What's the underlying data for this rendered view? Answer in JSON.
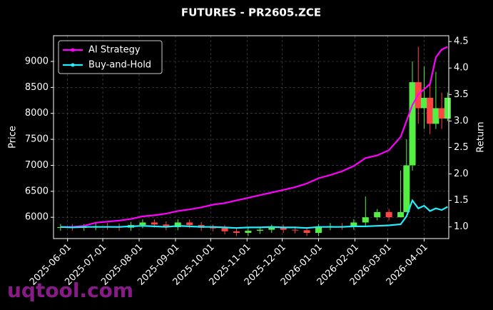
{
  "chart_data": {
    "type": "candlestick",
    "title": "FUTURES - PR2605.ZCE",
    "y_label": "Price",
    "y2_label": "Return",
    "watermark": "uqtool.com",
    "x": [
      "2025-05-26",
      "2025-06-05",
      "2025-06-15",
      "2025-06-25",
      "2025-07-05",
      "2025-07-15",
      "2025-07-25",
      "2025-08-04",
      "2025-08-14",
      "2025-08-24",
      "2025-09-03",
      "2025-09-13",
      "2025-09-23",
      "2025-10-03",
      "2025-10-13",
      "2025-10-23",
      "2025-11-02",
      "2025-11-12",
      "2025-11-22",
      "2025-12-02",
      "2025-12-12",
      "2025-12-22",
      "2026-01-01",
      "2026-01-11",
      "2026-01-21",
      "2026-01-31",
      "2026-02-10",
      "2026-02-20",
      "2026-03-02",
      "2026-03-12",
      "2026-03-17",
      "2026-03-22",
      "2026-03-27",
      "2026-04-01",
      "2026-04-06",
      "2026-04-11",
      "2026-04-16",
      "2026-04-21"
    ],
    "open": [
      5800,
      5810,
      5800,
      5810,
      5830,
      5820,
      5800,
      5850,
      5900,
      5860,
      5810,
      5900,
      5850,
      5800,
      5790,
      5730,
      5700,
      5740,
      5760,
      5800,
      5760,
      5750,
      5700,
      5810,
      5830,
      5820,
      5900,
      6000,
      6100,
      6000,
      6100,
      7000,
      8600,
      8100,
      8300,
      7800,
      8100,
      7900
    ],
    "high": [
      5870,
      5870,
      5870,
      5890,
      5890,
      5880,
      5910,
      5960,
      5960,
      5920,
      5960,
      5960,
      5910,
      5860,
      5850,
      5790,
      5800,
      5820,
      5860,
      5860,
      5820,
      5810,
      5870,
      5890,
      5890,
      5960,
      6400,
      6160,
      6160,
      6900,
      7500,
      9000,
      9280,
      8900,
      8600,
      8800,
      8400,
      8400
    ],
    "low": [
      5740,
      5740,
      5740,
      5750,
      5760,
      5740,
      5740,
      5790,
      5800,
      5750,
      5750,
      5790,
      5740,
      5730,
      5670,
      5640,
      5640,
      5680,
      5700,
      5700,
      5690,
      5640,
      5640,
      5750,
      5760,
      5760,
      5840,
      5940,
      5940,
      6000,
      6100,
      6900,
      7800,
      7700,
      7600,
      7700,
      7700,
      7850
    ],
    "close": [
      5810,
      5800,
      5810,
      5830,
      5820,
      5800,
      5850,
      5900,
      5860,
      5810,
      5900,
      5850,
      5800,
      5790,
      5730,
      5700,
      5740,
      5760,
      5800,
      5760,
      5750,
      5700,
      5810,
      5830,
      5820,
      5900,
      6000,
      6100,
      6000,
      6100,
      7000,
      8600,
      8100,
      8300,
      7800,
      8100,
      7900,
      8300
    ],
    "up_color": "#55ee44",
    "down_color": "#ff4444",
    "series": [
      {
        "name": "AI Strategy",
        "color": "#ff00ff",
        "axis": "y2",
        "values": [
          1.0,
          1.0,
          1.02,
          1.08,
          1.1,
          1.12,
          1.15,
          1.2,
          1.22,
          1.25,
          1.3,
          1.33,
          1.37,
          1.42,
          1.45,
          1.5,
          1.55,
          1.6,
          1.65,
          1.7,
          1.75,
          1.82,
          1.92,
          1.98,
          2.05,
          2.15,
          2.3,
          2.35,
          2.45,
          2.7,
          3.0,
          3.3,
          3.5,
          3.6,
          3.7,
          4.2,
          4.35,
          4.4
        ]
      },
      {
        "name": "Buy-and-Hold",
        "color": "#22eeff",
        "axis": "y2",
        "values": [
          1.0,
          0.99,
          1.0,
          1.0,
          1.0,
          1.0,
          1.01,
          1.02,
          1.01,
          1.0,
          1.02,
          1.01,
          1.0,
          1.0,
          0.99,
          0.98,
          0.99,
          0.99,
          1.0,
          0.99,
          0.99,
          0.98,
          1.0,
          1.0,
          1.0,
          1.01,
          1.01,
          1.02,
          1.03,
          1.05,
          1.2,
          1.5,
          1.35,
          1.4,
          1.3,
          1.35,
          1.32,
          1.38
        ]
      }
    ],
    "xlim": [
      "2025-05-20",
      "2026-04-22"
    ],
    "xticks": [
      "2025-06-01",
      "2025-07-01",
      "2025-08-01",
      "2025-09-01",
      "2025-10-01",
      "2025-11-01",
      "2025-12-01",
      "2026-01-01",
      "2026-02-01",
      "2026-03-01",
      "2026-04-01"
    ],
    "ylim": [
      5590,
      9495
    ],
    "yticks": [
      6000,
      6500,
      7000,
      7500,
      8000,
      8500,
      9000
    ],
    "y2lim": [
      0.78,
      4.61
    ],
    "y2ticks": [
      {
        "value": 1,
        "label": "1.0"
      },
      {
        "value": 1.5,
        "label": "1.5"
      },
      {
        "value": 2,
        "label": "2.0"
      },
      {
        "value": 2.5,
        "label": "2.5"
      },
      {
        "value": 3,
        "label": "3.0"
      },
      {
        "value": 3.5,
        "label": "3.5"
      },
      {
        "value": 4,
        "label": "4.0"
      },
      {
        "value": 4.5,
        "label": "4.5"
      }
    ],
    "grid": true,
    "legend": "upper left"
  }
}
